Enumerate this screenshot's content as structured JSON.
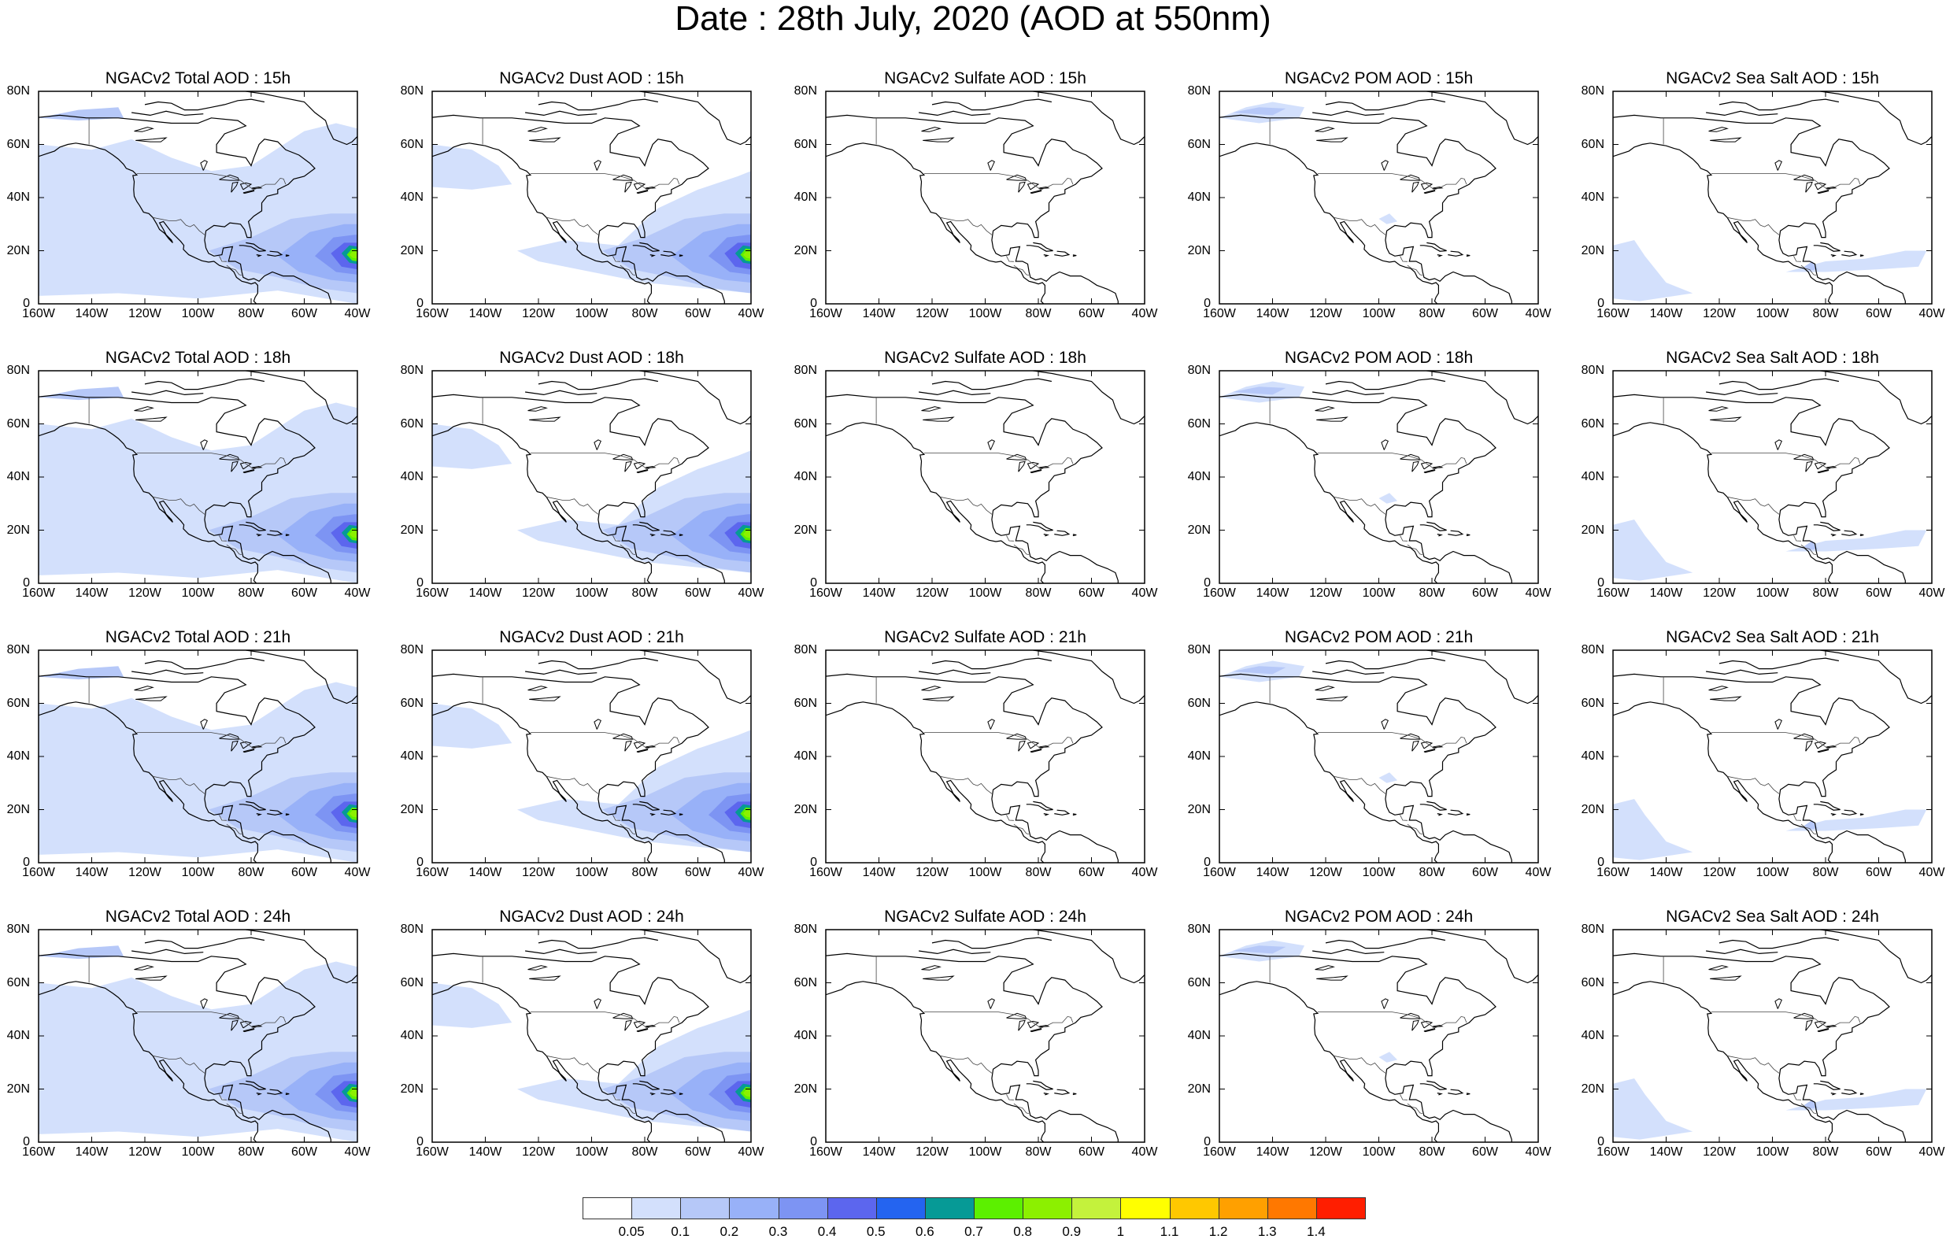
{
  "title": "Date : 28th July, 2020 (AOD at 550nm)",
  "columns": [
    "Total",
    "Dust",
    "Sulfate",
    "POM",
    "Sea Salt"
  ],
  "rows": [
    [
      "NGACv2 Total AOD : 15h",
      "NGACv2 Dust AOD : 15h",
      "NGACv2 Sulfate AOD : 15h",
      "NGACv2 POM AOD : 15h",
      "NGACv2 Sea Salt AOD : 15h"
    ],
    [
      "NGACv2 Total AOD : 18h",
      "NGACv2 Dust AOD : 18h",
      "NGACv2 Sulfate AOD : 18h",
      "NGACv2 POM AOD : 18h",
      "NGACv2 Sea Salt AOD : 18h"
    ],
    [
      "NGACv2 Total AOD : 21h",
      "NGACv2 Dust AOD : 21h",
      "NGACv2 Sulfate AOD : 21h",
      "NGACv2 POM AOD : 21h",
      "NGACv2 Sea Salt AOD : 21h"
    ],
    [
      "NGACv2 Total AOD : 24h",
      "NGACv2 Dust AOD : 24h",
      "NGACv2 Sulfate AOD : 24h",
      "NGACv2 POM AOD : 24h",
      "NGACv2 Sea Salt  AOD : 24h"
    ]
  ],
  "lat_ticks": [
    "80N",
    "60N",
    "40N",
    "20N",
    "0"
  ],
  "lon_ticks": [
    "160W",
    "140W",
    "120W",
    "100W",
    "80W",
    "60W",
    "40W"
  ],
  "colorbar": {
    "labels": [
      "0.05",
      "0.1",
      "0.2",
      "0.3",
      "0.4",
      "0.5",
      "0.6",
      "0.7",
      "0.8",
      "0.9",
      "1",
      "1.1",
      "1.2",
      "1.3",
      "1.4"
    ],
    "colors": [
      "#ffffff",
      "#d3e0fc",
      "#b6c8f8",
      "#98b1f8",
      "#7d94f3",
      "#5c66ee",
      "#2464f0",
      "#069a96",
      "#5cf000",
      "#8cf000",
      "#c4f23c",
      "#ffff00",
      "#ffc800",
      "#ffa000",
      "#ff7800",
      "#ff1e00"
    ]
  }
}
